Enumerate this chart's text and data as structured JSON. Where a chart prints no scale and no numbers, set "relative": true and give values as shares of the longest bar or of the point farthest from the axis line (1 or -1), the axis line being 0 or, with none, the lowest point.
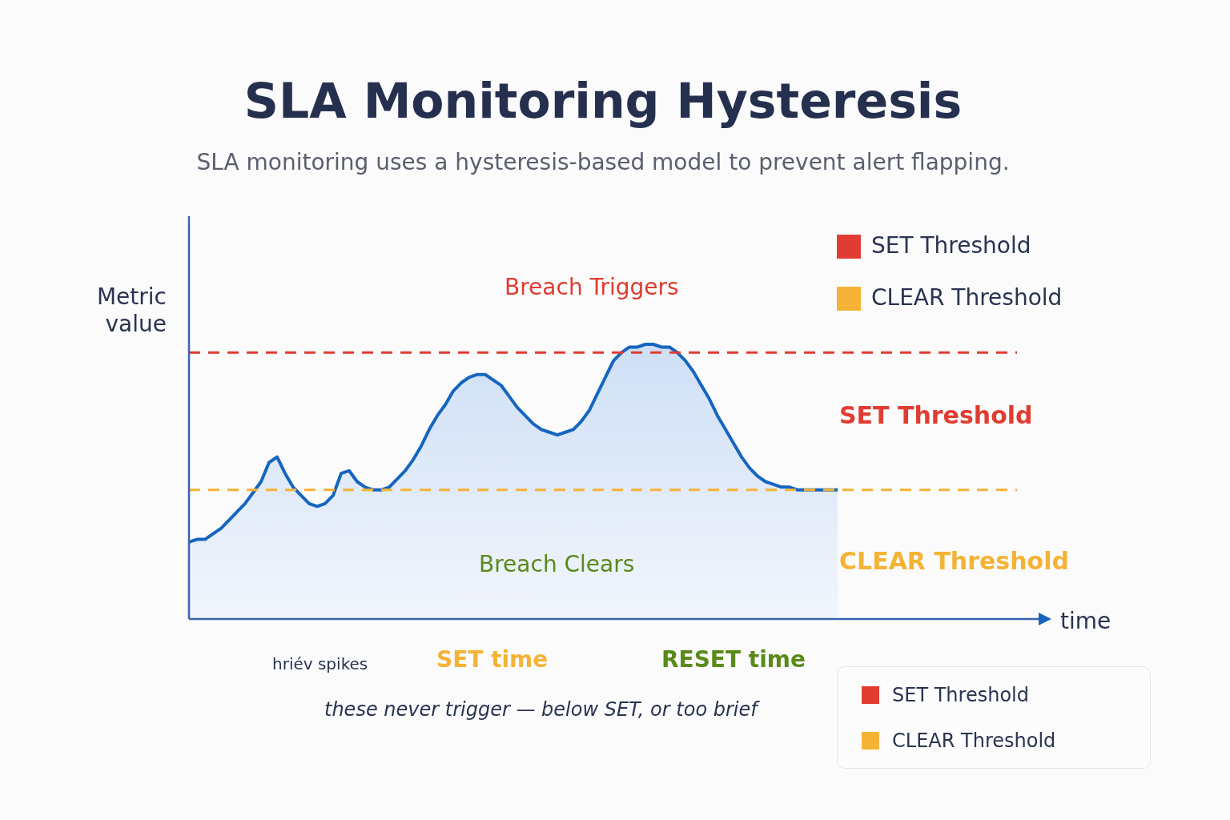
{
  "chart_data": {
    "type": "area",
    "title": "SLA Monitoring Hysteresis",
    "subtitle": "SLA monitoring uses a hysteresis-based model to prevent alert flapping.",
    "ylabel": "Metric value",
    "relative": true,
    "categories": [
      null,
      null,
      null,
      null,
      null,
      null,
      null,
      null,
      null,
      null,
      null,
      null,
      null,
      null,
      null,
      null,
      null,
      null,
      null,
      null,
      null,
      null,
      null,
      null,
      null,
      null,
      null,
      null,
      null,
      null,
      null,
      null,
      null,
      null,
      null,
      null,
      null,
      null,
      null,
      null,
      null,
      null,
      null,
      null,
      null,
      null,
      null,
      null,
      null,
      null,
      null,
      null,
      null,
      null,
      null,
      null,
      null,
      null,
      null,
      null,
      null,
      null,
      null,
      null,
      null,
      null,
      null,
      null,
      null,
      null,
      null,
      null,
      null,
      null,
      null,
      null,
      null,
      null,
      null,
      null,
      null,
      null
    ],
    "series": [
      {
        "color": "#1565c0",
        "values": [
          0.28,
          0.29,
          0.29,
          0.31,
          0.33,
          0.36,
          0.39,
          0.42,
          0.46,
          0.5,
          0.57,
          0.59,
          0.53,
          0.48,
          0.45,
          0.42,
          0.41,
          0.42,
          0.45,
          0.53,
          0.54,
          0.5,
          0.48,
          0.47,
          0.47,
          0.48,
          0.51,
          0.54,
          0.58,
          0.63,
          0.69,
          0.74,
          0.78,
          0.83,
          0.86,
          0.88,
          0.89,
          0.89,
          0.87,
          0.85,
          0.81,
          0.77,
          0.74,
          0.71,
          0.69,
          0.68,
          0.67,
          0.68,
          0.69,
          0.72,
          0.76,
          0.82,
          0.88,
          0.94,
          0.97,
          0.99,
          0.99,
          1,
          1,
          0.99,
          0.99,
          0.97,
          0.94,
          0.9,
          0.85,
          0.8,
          0.74,
          0.69,
          0.64,
          0.59,
          0.55,
          0.52,
          0.5,
          0.49,
          0.48,
          0.48,
          0.47,
          0.47,
          0.47,
          0.47,
          0.47,
          0.47
        ]
      }
    ],
    "ref_lines": [
      {
        "axis": "y",
        "value": 0.97,
        "label": "SET Threshold",
        "color": "#e03c31",
        "line_style": "dashed"
      },
      {
        "axis": "y",
        "value": 0.47,
        "label": "CLEAR Threshold",
        "color": "#f5b335",
        "line_style": "dashed"
      }
    ],
    "annotations": [
      "Breach Triggers",
      "Breach Clears",
      "SET time",
      "RESET time",
      "hriév spikes",
      "these never trigger — below SET, or too brief",
      "time"
    ],
    "legend": "top right"
  }
}
